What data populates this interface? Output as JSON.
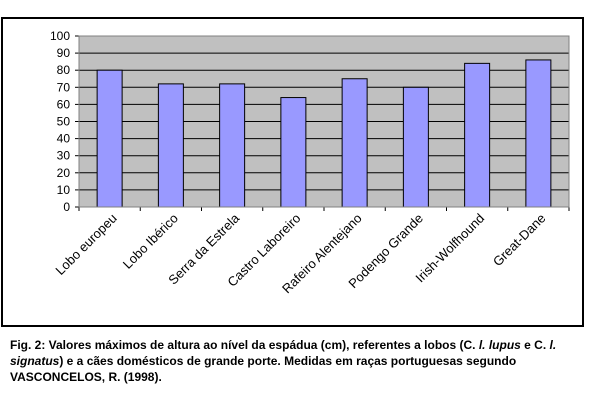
{
  "chart_data": {
    "type": "bar",
    "categories": [
      "Lobo europeu",
      "Lobo Ibérico",
      "Serra da Estrela",
      "Castro Laboreiro",
      "Rafeiro Alentejano",
      "Podengo Grande",
      "Irish-Wolfhound",
      "Great-Dane"
    ],
    "values": [
      80,
      72,
      72,
      64,
      75,
      70,
      84,
      86
    ],
    "ylim": [
      0,
      100
    ],
    "yticks": [
      0,
      10,
      20,
      30,
      40,
      50,
      60,
      70,
      80,
      90,
      100
    ],
    "grid": true,
    "legend": "none",
    "colors": {
      "bar": "#9999ff",
      "plot_background": "#c0c0c0",
      "gridline": "#000000",
      "axis": "#000000",
      "frame": "#000000"
    }
  },
  "caption": {
    "prefix": "Fig. 2: Valores máximos de altura ao nível da espádua (cm), referentes a lobos (C. ",
    "i1": "l. lupus",
    "mid1": " e C. ",
    "i2": "l. signatus",
    "suffix": ") e a cães domésticos de grande porte. Medidas em raças portuguesas segundo VASCONCELOS, R. (1998)."
  }
}
